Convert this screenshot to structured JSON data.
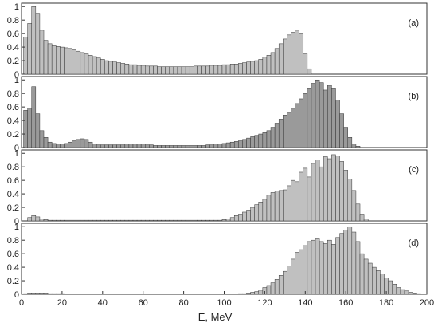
{
  "chart_data": {
    "type": "bar",
    "xlabel": "E, MeV",
    "xlim": [
      0,
      200
    ],
    "x_ticks": [
      0,
      20,
      40,
      60,
      80,
      100,
      120,
      140,
      160,
      180,
      200
    ],
    "y_ticks": [
      0,
      0.2,
      0.4,
      0.6,
      0.8,
      1
    ],
    "bin_width_mev": 2,
    "grid": false,
    "panels": [
      {
        "label": "(a)",
        "ylim": [
          0,
          1.05
        ],
        "bar_color": "#c0c0c0",
        "x": [
          2,
          4,
          6,
          8,
          10,
          12,
          14,
          16,
          18,
          20,
          22,
          24,
          26,
          28,
          30,
          32,
          34,
          36,
          38,
          40,
          42,
          44,
          46,
          48,
          50,
          52,
          54,
          56,
          58,
          60,
          62,
          64,
          66,
          68,
          70,
          72,
          74,
          76,
          78,
          80,
          82,
          84,
          86,
          88,
          90,
          92,
          94,
          96,
          98,
          100,
          102,
          104,
          106,
          108,
          110,
          112,
          114,
          116,
          118,
          120,
          122,
          124,
          126,
          128,
          130,
          132,
          134,
          136,
          138,
          140,
          142
        ],
        "values": [
          0.55,
          0.75,
          1.0,
          0.9,
          0.65,
          0.5,
          0.45,
          0.42,
          0.41,
          0.4,
          0.39,
          0.38,
          0.36,
          0.34,
          0.32,
          0.3,
          0.28,
          0.26,
          0.24,
          0.22,
          0.2,
          0.19,
          0.18,
          0.17,
          0.16,
          0.15,
          0.14,
          0.14,
          0.13,
          0.13,
          0.12,
          0.12,
          0.12,
          0.11,
          0.11,
          0.11,
          0.11,
          0.11,
          0.11,
          0.11,
          0.11,
          0.11,
          0.12,
          0.12,
          0.12,
          0.12,
          0.13,
          0.13,
          0.13,
          0.14,
          0.14,
          0.15,
          0.15,
          0.16,
          0.17,
          0.18,
          0.19,
          0.2,
          0.22,
          0.25,
          0.28,
          0.32,
          0.38,
          0.45,
          0.52,
          0.58,
          0.62,
          0.65,
          0.6,
          0.3,
          0.08
        ]
      },
      {
        "label": "(b)",
        "ylim": [
          0,
          1.05
        ],
        "bar_color": "#9a9a9a",
        "x": [
          2,
          4,
          6,
          8,
          10,
          12,
          14,
          16,
          18,
          20,
          22,
          24,
          26,
          28,
          30,
          32,
          34,
          36,
          38,
          40,
          42,
          44,
          46,
          48,
          50,
          52,
          54,
          56,
          58,
          60,
          62,
          64,
          66,
          68,
          70,
          72,
          74,
          76,
          78,
          80,
          82,
          84,
          86,
          88,
          90,
          92,
          94,
          96,
          98,
          100,
          102,
          104,
          106,
          108,
          110,
          112,
          114,
          116,
          118,
          120,
          122,
          124,
          126,
          128,
          130,
          132,
          134,
          136,
          138,
          140,
          142,
          144,
          146,
          148,
          150,
          152,
          154,
          156,
          158,
          160,
          162,
          164,
          166
        ],
        "values": [
          0.55,
          0.58,
          0.9,
          0.5,
          0.25,
          0.15,
          0.08,
          0.06,
          0.05,
          0.05,
          0.06,
          0.08,
          0.1,
          0.12,
          0.13,
          0.12,
          0.08,
          0.05,
          0.04,
          0.04,
          0.04,
          0.04,
          0.04,
          0.04,
          0.04,
          0.05,
          0.05,
          0.05,
          0.05,
          0.05,
          0.04,
          0.04,
          0.03,
          0.03,
          0.03,
          0.03,
          0.03,
          0.03,
          0.03,
          0.03,
          0.03,
          0.03,
          0.03,
          0.03,
          0.03,
          0.04,
          0.04,
          0.05,
          0.05,
          0.06,
          0.07,
          0.08,
          0.09,
          0.1,
          0.12,
          0.14,
          0.16,
          0.18,
          0.2,
          0.22,
          0.25,
          0.3,
          0.36,
          0.42,
          0.48,
          0.52,
          0.58,
          0.65,
          0.72,
          0.8,
          0.88,
          0.95,
          1.0,
          0.96,
          0.85,
          0.92,
          0.88,
          0.7,
          0.5,
          0.3,
          0.15,
          0.05,
          0.02
        ]
      },
      {
        "label": "(c)",
        "ylim": [
          0,
          1.05
        ],
        "bar_color": "#c0c0c0",
        "x": [
          2,
          4,
          6,
          8,
          10,
          12,
          14,
          16,
          18,
          20,
          22,
          24,
          26,
          28,
          30,
          32,
          34,
          36,
          38,
          40,
          42,
          44,
          46,
          48,
          50,
          52,
          54,
          56,
          58,
          60,
          62,
          64,
          66,
          68,
          70,
          72,
          74,
          76,
          78,
          80,
          82,
          84,
          86,
          88,
          90,
          92,
          94,
          96,
          98,
          100,
          102,
          104,
          106,
          108,
          110,
          112,
          114,
          116,
          118,
          120,
          122,
          124,
          126,
          128,
          130,
          132,
          134,
          136,
          138,
          140,
          142,
          144,
          146,
          148,
          150,
          152,
          154,
          156,
          158,
          160,
          162,
          164,
          166,
          168,
          170
        ],
        "values": [
          0.0,
          0.05,
          0.08,
          0.06,
          0.03,
          0.02,
          0.01,
          0.01,
          0.01,
          0.01,
          0.01,
          0.01,
          0.01,
          0.01,
          0.01,
          0.01,
          0.01,
          0.01,
          0.01,
          0.01,
          0.01,
          0.01,
          0.01,
          0.01,
          0.01,
          0.01,
          0.01,
          0.01,
          0.01,
          0.01,
          0.01,
          0.01,
          0.01,
          0.01,
          0.01,
          0.01,
          0.01,
          0.01,
          0.01,
          0.01,
          0.01,
          0.01,
          0.01,
          0.01,
          0.01,
          0.01,
          0.01,
          0.01,
          0.01,
          0.02,
          0.03,
          0.05,
          0.08,
          0.1,
          0.13,
          0.16,
          0.2,
          0.24,
          0.28,
          0.32,
          0.38,
          0.42,
          0.44,
          0.45,
          0.46,
          0.52,
          0.6,
          0.58,
          0.72,
          0.78,
          0.65,
          0.85,
          0.9,
          0.8,
          0.95,
          0.92,
          0.98,
          0.96,
          0.88,
          0.75,
          0.62,
          0.45,
          0.25,
          0.1,
          0.03
        ]
      },
      {
        "label": "(d)",
        "ylim": [
          0,
          1.05
        ],
        "bar_color": "#c0c0c0",
        "x": [
          2,
          4,
          6,
          8,
          10,
          12,
          14,
          16,
          18,
          20,
          22,
          24,
          26,
          28,
          30,
          32,
          34,
          36,
          38,
          40,
          42,
          44,
          46,
          48,
          50,
          52,
          54,
          56,
          58,
          60,
          62,
          64,
          66,
          68,
          70,
          72,
          74,
          76,
          78,
          80,
          82,
          84,
          86,
          88,
          90,
          92,
          94,
          96,
          98,
          100,
          102,
          104,
          106,
          108,
          110,
          112,
          114,
          116,
          118,
          120,
          122,
          124,
          126,
          128,
          130,
          132,
          134,
          136,
          138,
          140,
          142,
          144,
          146,
          148,
          150,
          152,
          154,
          156,
          158,
          160,
          162,
          164,
          166,
          168,
          170,
          172,
          174,
          176,
          178,
          180,
          182,
          184,
          186,
          188,
          190,
          192,
          194,
          196
        ],
        "values": [
          0.01,
          0.02,
          0.02,
          0.02,
          0.02,
          0.02,
          0.01,
          0.01,
          0.01,
          0.01,
          0.0,
          0.0,
          0.0,
          0.0,
          0.0,
          0.0,
          0.0,
          0.0,
          0.0,
          0.0,
          0.0,
          0.0,
          0.0,
          0.0,
          0.0,
          0.0,
          0.0,
          0.0,
          0.0,
          0.0,
          0.0,
          0.0,
          0.0,
          0.0,
          0.0,
          0.0,
          0.0,
          0.0,
          0.0,
          0.0,
          0.0,
          0.0,
          0.0,
          0.0,
          0.0,
          0.0,
          0.0,
          0.0,
          0.0,
          0.0,
          0.0,
          0.0,
          0.0,
          0.01,
          0.01,
          0.02,
          0.03,
          0.04,
          0.06,
          0.1,
          0.13,
          0.17,
          0.22,
          0.28,
          0.34,
          0.42,
          0.52,
          0.62,
          0.66,
          0.72,
          0.78,
          0.8,
          0.82,
          0.78,
          0.75,
          0.8,
          0.74,
          0.84,
          0.9,
          0.95,
          1.0,
          0.92,
          0.78,
          0.6,
          0.52,
          0.46,
          0.4,
          0.35,
          0.3,
          0.24,
          0.2,
          0.15,
          0.1,
          0.07,
          0.05,
          0.03,
          0.02,
          0.01
        ]
      }
    ]
  }
}
